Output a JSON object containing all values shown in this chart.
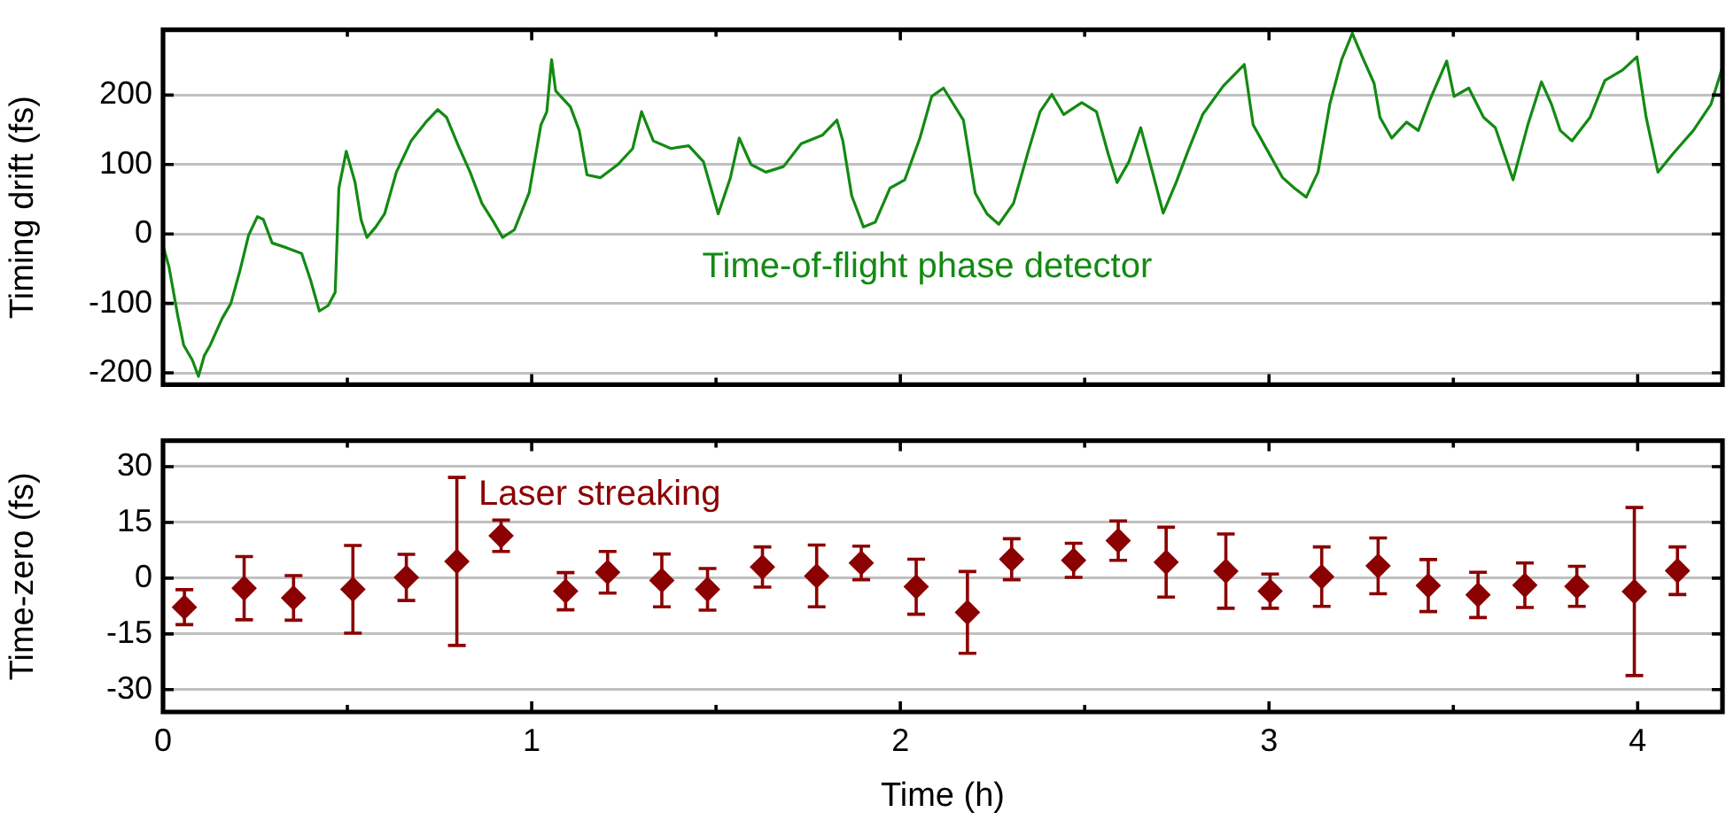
{
  "chart_data": [
    {
      "type": "line",
      "ylabel": "Timing drift (fs)",
      "xlim": [
        0,
        4.23
      ],
      "ylim": [
        -217,
        294
      ],
      "xticks": [
        0,
        {
          "value": 0.5,
          "label": null
        },
        1,
        {
          "value": 1.5,
          "label": null
        },
        2,
        {
          "value": 2.5,
          "label": null
        },
        3,
        {
          "value": 3.5,
          "label": null
        },
        4
      ],
      "yticks": [
        -200,
        -100,
        0,
        100,
        200
      ],
      "grid": "y",
      "tick_labels": "y",
      "marker": "none",
      "line_style": "solid",
      "series": [
        {
          "name": "Time-of-flight phase detector",
          "color": "#138a13",
          "x": [
            0,
            0.016,
            0.04,
            0.056,
            0.08,
            0.096,
            0.112,
            0.128,
            0.16,
            0.184,
            0.208,
            0.232,
            0.256,
            0.272,
            0.296,
            0.336,
            0.376,
            0.4,
            0.424,
            0.448,
            0.467,
            0.477,
            0.497,
            0.521,
            0.537,
            0.553,
            0.577,
            0.601,
            0.633,
            0.673,
            0.713,
            0.745,
            0.769,
            0.801,
            0.833,
            0.865,
            0.897,
            0.921,
            0.953,
            0.993,
            1.025,
            1.041,
            1.054,
            1.065,
            1.105,
            1.129,
            1.15,
            1.186,
            1.234,
            1.274,
            1.298,
            1.33,
            1.378,
            1.426,
            1.466,
            1.506,
            1.539,
            1.563,
            1.595,
            1.635,
            1.683,
            1.731,
            1.788,
            1.828,
            1.844,
            1.868,
            1.9,
            1.932,
            1.972,
            2.012,
            2.053,
            2.085,
            2.117,
            2.171,
            2.203,
            2.235,
            2.267,
            2.307,
            2.347,
            2.379,
            2.411,
            2.443,
            2.492,
            2.532,
            2.564,
            2.588,
            2.62,
            2.652,
            2.684,
            2.713,
            2.748,
            2.78,
            2.82,
            2.876,
            2.933,
            2.957,
            2.997,
            3.037,
            3.069,
            3.101,
            3.133,
            3.165,
            3.197,
            3.226,
            3.253,
            3.285,
            3.301,
            3.333,
            3.373,
            3.405,
            3.438,
            3.482,
            3.502,
            3.542,
            3.582,
            3.614,
            3.662,
            3.702,
            3.739,
            3.766,
            3.79,
            3.822,
            3.871,
            3.911,
            3.959,
            3.998,
            4.023,
            4.055,
            4.095,
            4.151,
            4.199,
            4.23
          ],
          "values": [
            -17,
            -47,
            -118,
            -160,
            -182,
            -205,
            -175,
            -160,
            -122,
            -100,
            -54,
            -2,
            25,
            21,
            -13,
            -20,
            -28,
            -66,
            -111,
            -103,
            -84,
            66,
            119,
            74,
            21,
            -5,
            10,
            29,
            89,
            134,
            161,
            179,
            168,
            127,
            89,
            44,
            17,
            -5,
            6,
            59,
            157,
            176,
            251,
            206,
            183,
            149,
            85,
            81,
            100,
            123,
            176,
            134,
            123,
            127,
            104,
            29,
            81,
            138,
            100,
            89,
            97,
            130,
            142,
            164,
            134,
            55,
            10,
            17,
            66,
            78,
            138,
            198,
            210,
            164,
            59,
            29,
            14,
            44,
            119,
            176,
            201,
            172,
            189,
            176,
            115,
            74,
            104,
            153,
            89,
            30,
            74,
            119,
            172,
            213,
            244,
            157,
            119,
            81,
            66,
            53,
            89,
            187,
            251,
            289,
            255,
            217,
            168,
            138,
            161,
            149,
            195,
            249,
            198,
            210,
            168,
            153,
            78,
            157,
            219,
            187,
            149,
            134,
            168,
            221,
            236,
            255,
            168,
            89,
            115,
            149,
            187,
            240
          ]
        }
      ]
    },
    {
      "type": "scatter",
      "xlabel": "Time (h)",
      "ylabel": "Time-zero (fs)",
      "xlim": [
        0,
        4.23
      ],
      "ylim": [
        -36,
        37
      ],
      "xticks": [
        0,
        {
          "value": 0.5,
          "label": null
        },
        1,
        {
          "value": 1.5,
          "label": null
        },
        2,
        {
          "value": 2.5,
          "label": null
        },
        3,
        {
          "value": 3.5,
          "label": null
        },
        4
      ],
      "yticks": [
        -30,
        -15,
        0,
        15,
        30
      ],
      "grid": "y",
      "marker": "diamond",
      "series": [
        {
          "name": "Laser streaking",
          "color": "#8b0000",
          "x": [
            0.058,
            0.22,
            0.354,
            0.515,
            0.66,
            0.797,
            0.917,
            1.092,
            1.206,
            1.353,
            1.477,
            1.626,
            1.773,
            1.894,
            2.043,
            2.182,
            2.302,
            2.47,
            2.591,
            2.721,
            2.883,
            3.003,
            3.143,
            3.296,
            3.432,
            3.567,
            3.694,
            3.835,
            3.991,
            4.108
          ],
          "values": [
            -7.8,
            -2.7,
            -5.3,
            -3,
            0.2,
            4.5,
            11.4,
            -3.5,
            1.6,
            -0.6,
            -3,
            3,
            0.6,
            4.1,
            -2.3,
            -9.2,
            5.1,
            4.8,
            10.1,
            4.3,
            1.9,
            -3.5,
            0.4,
            3.3,
            -2,
            -4.5,
            -1.9,
            -2.2,
            -3.6,
            2
          ],
          "errors": [
            4.7,
            8.5,
            6,
            11.8,
            6.2,
            22.6,
            4.2,
            5,
            5.6,
            7.1,
            5.6,
            5.4,
            8.3,
            4.5,
            7.4,
            11,
            5.5,
            4.6,
            5.3,
            9.4,
            10,
            4.6,
            8,
            7.5,
            7,
            6.1,
            6,
            5.4,
            22.6,
            6.4
          ]
        }
      ]
    }
  ]
}
